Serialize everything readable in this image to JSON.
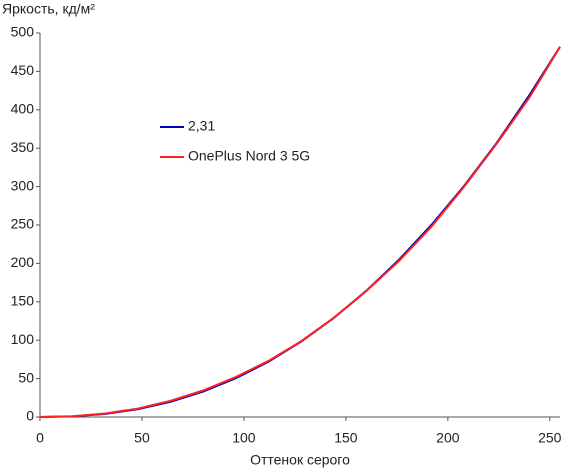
{
  "chart_data": {
    "type": "line",
    "y_label": "Яркость, кд/м²",
    "x_label": "Оттенок серого",
    "x": [
      0,
      16,
      32,
      48,
      64,
      80,
      96,
      112,
      128,
      144,
      160,
      176,
      192,
      208,
      224,
      240,
      255
    ],
    "series": [
      {
        "name": "2,31",
        "color": "#0000c0",
        "values": [
          0,
          0.8,
          4,
          10.2,
          19.8,
          33.1,
          50.5,
          72,
          98.1,
          128.8,
          164.3,
          204.6,
          250.2,
          301,
          357,
          419,
          482
        ]
      },
      {
        "name": "OnePlus Nord 3 5G",
        "color": "#ff2020",
        "values": [
          0,
          1,
          4.5,
          11,
          21,
          34.5,
          52,
          73,
          98.5,
          129,
          164,
          203,
          248,
          300,
          356,
          416,
          482
        ]
      }
    ],
    "xlim": [
      0,
      255
    ],
    "xticks": [
      0,
      50,
      100,
      150,
      200,
      250
    ],
    "ylim": [
      0,
      500
    ],
    "yticks": [
      0,
      50,
      100,
      150,
      200,
      250,
      300,
      350,
      400,
      450,
      500
    ],
    "grid": false
  }
}
